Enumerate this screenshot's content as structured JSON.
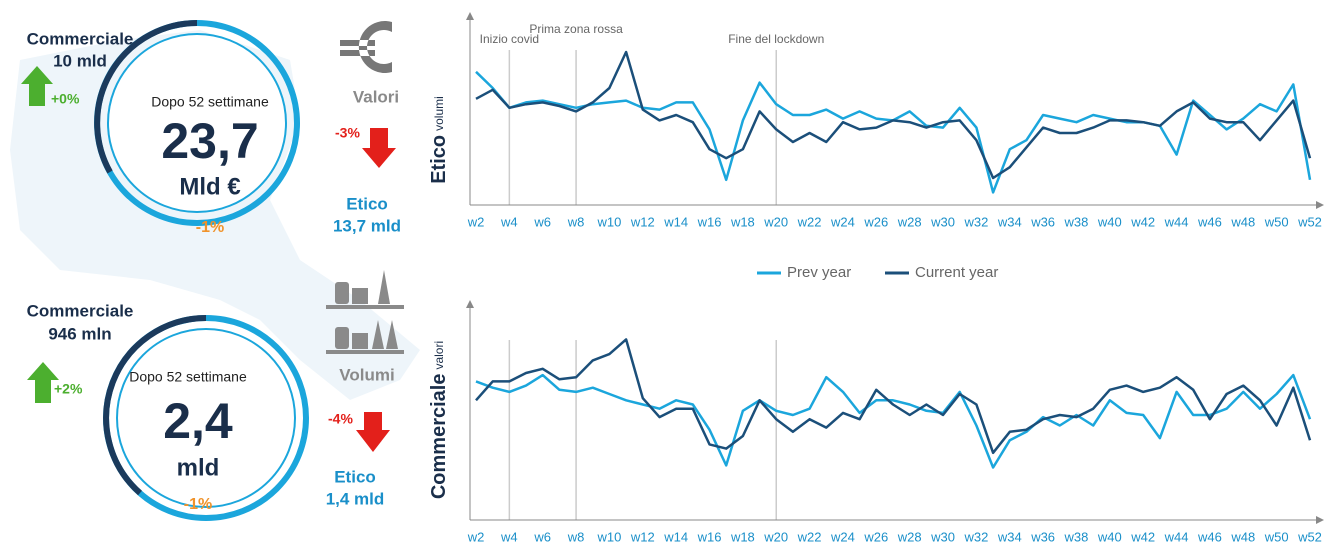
{
  "values_panel": {
    "icon_label": "Valori",
    "ring": {
      "caption": "Dopo 52 settimane",
      "value": "23,7",
      "unit": "Mld €",
      "change": "-1%"
    },
    "commerciale": {
      "label": "Commerciale",
      "amount": "10 mld",
      "change": "+0%"
    },
    "etico": {
      "label": "Etico",
      "amount": "13,7 mld",
      "change": "-3%"
    }
  },
  "volumes_panel": {
    "icon_label": "Volumi",
    "ring": {
      "caption": "Dopo 52 settimane",
      "value": "2,4",
      "unit": "mld",
      "change": "-1%"
    },
    "commerciale": {
      "label": "Commerciale",
      "amount": "946 mln",
      "change": "+2%"
    },
    "etico": {
      "label": "Etico",
      "amount": "1,4 mld",
      "change": "-4%"
    }
  },
  "chart_data": [
    {
      "type": "line",
      "ylabel": "Etico",
      "ylabel_sub": "volumi",
      "ylim": [
        0,
        100
      ],
      "categories": [
        "w2",
        null,
        "w4",
        null,
        "w6",
        null,
        "w8",
        null,
        "w10",
        null,
        "w12",
        null,
        "w14",
        null,
        "w16",
        null,
        "w18",
        null,
        "w20",
        null,
        "w22",
        null,
        "w24",
        null,
        "w26",
        null,
        "w28",
        null,
        "w30",
        null,
        "w32",
        null,
        "w34",
        null,
        "w36",
        null,
        "w38",
        null,
        "w40",
        null,
        "w42",
        null,
        "w44",
        null,
        "w46",
        null,
        "w48",
        null,
        "w50",
        null,
        "w52"
      ],
      "annotations": [
        {
          "x": "w4",
          "text": "Inizio covid"
        },
        {
          "x": "w8",
          "text": "Prima zona rossa"
        },
        {
          "x": "w20",
          "text": "Fine del lockdown"
        }
      ],
      "series": [
        {
          "name": "Prev year",
          "color": "#1ba6dc",
          "values": [
            74,
            65,
            54,
            57,
            58,
            56,
            54,
            56,
            57,
            58,
            54,
            53,
            57,
            57,
            42,
            14,
            47,
            68,
            56,
            50,
            50,
            53,
            48,
            52,
            48,
            47,
            52,
            44,
            43,
            54,
            43,
            7,
            31,
            36,
            50,
            48,
            46,
            50,
            48,
            46,
            46,
            44,
            28,
            58,
            50,
            42,
            48,
            56,
            52,
            67,
            14
          ]
        },
        {
          "name": "Current year",
          "color": "#1b4f7a",
          "values": [
            59,
            64,
            54,
            56,
            57,
            55,
            52,
            57,
            65,
            85,
            53,
            47,
            50,
            46,
            31,
            26,
            31,
            52,
            42,
            35,
            40,
            35,
            46,
            42,
            43,
            47,
            46,
            43,
            46,
            47,
            36,
            15,
            21,
            32,
            43,
            40,
            40,
            43,
            47,
            47,
            46,
            44,
            52,
            57,
            48,
            46,
            46,
            36,
            47,
            58,
            26
          ]
        }
      ]
    },
    {
      "type": "line",
      "ylabel": "Commerciale",
      "ylabel_sub": "valori",
      "ylim": [
        0,
        100
      ],
      "categories": [
        "w2",
        null,
        "w4",
        null,
        "w6",
        null,
        "w8",
        null,
        "w10",
        null,
        "w12",
        null,
        "w14",
        null,
        "w16",
        null,
        "w18",
        null,
        "w20",
        null,
        "w22",
        null,
        "w24",
        null,
        "w26",
        null,
        "w28",
        null,
        "w30",
        null,
        "w32",
        null,
        "w34",
        null,
        "w36",
        null,
        "w38",
        null,
        "w40",
        null,
        "w42",
        null,
        "w44",
        null,
        "w46",
        null,
        "w48",
        null,
        "w50",
        null,
        "w52"
      ],
      "event_lines": [
        "w4",
        "w8",
        "w20"
      ],
      "series": [
        {
          "color": "#1ba6dc",
          "values": [
            66,
            63,
            61,
            64,
            69,
            62,
            61,
            63,
            60,
            57,
            55,
            53,
            57,
            55,
            43,
            26,
            52,
            57,
            52,
            50,
            53,
            68,
            61,
            51,
            57,
            57,
            55,
            52,
            51,
            61,
            45,
            25,
            38,
            42,
            49,
            45,
            50,
            45,
            57,
            51,
            50,
            39,
            61,
            50,
            50,
            53,
            61,
            53,
            60,
            69,
            48
          ]
        },
        {
          "color": "#1b4f7a",
          "values": [
            57,
            66,
            66,
            70,
            72,
            67,
            68,
            76,
            79,
            86,
            58,
            49,
            53,
            53,
            36,
            34,
            40,
            57,
            48,
            42,
            48,
            44,
            51,
            48,
            62,
            55,
            50,
            55,
            50,
            60,
            55,
            32,
            42,
            43,
            48,
            50,
            49,
            53,
            62,
            64,
            61,
            63,
            68,
            62,
            48,
            60,
            64,
            57,
            45,
            63,
            38
          ]
        }
      ]
    }
  ]
}
